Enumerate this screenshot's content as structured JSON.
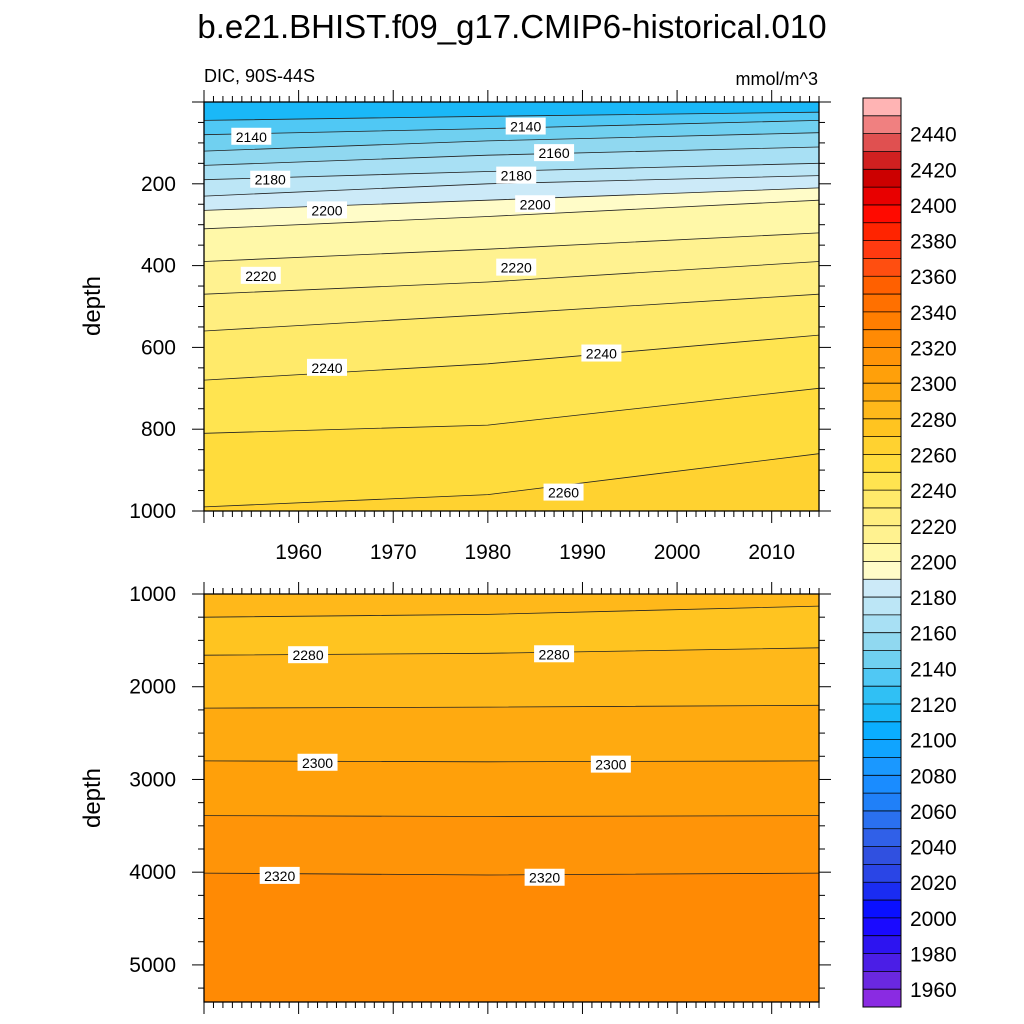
{
  "figure": {
    "title": "b.e21.BHIST.f09_g17.CMIP6-historical.010",
    "subtitle_left": "DIC, 90S-44S",
    "units": "mmol/m^3"
  },
  "colorbar": {
    "levels": [
      1960,
      1970,
      1980,
      1990,
      2000,
      2010,
      2020,
      2030,
      2040,
      2050,
      2060,
      2070,
      2080,
      2090,
      2100,
      2110,
      2120,
      2130,
      2140,
      2150,
      2160,
      2170,
      2180,
      2190,
      2200,
      2210,
      2220,
      2230,
      2240,
      2250,
      2260,
      2270,
      2280,
      2290,
      2300,
      2310,
      2320,
      2330,
      2340,
      2350,
      2360,
      2370,
      2380,
      2390,
      2400,
      2410,
      2420,
      2430,
      2440,
      2450
    ],
    "colors": [
      "#8a2be2",
      "#6a28e0",
      "#4b1ee6",
      "#2d14f0",
      "#1a0aff",
      "#0a10ff",
      "#1a2cf2",
      "#2a45e6",
      "#3050e0",
      "#3060e8",
      "#2a70f0",
      "#2080f8",
      "#1a8cff",
      "#1a98ff",
      "#10a4ff",
      "#0aaeff",
      "#1ab8f8",
      "#30c0f4",
      "#50c8f4",
      "#70d0f0",
      "#90d8f0",
      "#a8e0f4",
      "#bce6f6",
      "#cceaf8",
      "#fffcc8",
      "#fff8a8",
      "#fff290",
      "#ffee80",
      "#ffea6a",
      "#ffe450",
      "#ffdc3c",
      "#ffd230",
      "#ffc420",
      "#ffb81a",
      "#ffaa10",
      "#ffa00a",
      "#ff9408",
      "#ff8a04",
      "#ff7e00",
      "#ff7000",
      "#ff6000",
      "#ff4e10",
      "#ff3a10",
      "#ff2400",
      "#ff0a00",
      "#e80000",
      "#cc0000",
      "#d02020",
      "#e05050",
      "#f08080",
      "#ffb4b4"
    ],
    "tick_labels": [
      "1960",
      "1980",
      "2000",
      "2020",
      "2040",
      "2060",
      "2080",
      "2100",
      "2120",
      "2140",
      "2160",
      "2180",
      "2200",
      "2220",
      "2240",
      "2260",
      "2280",
      "2300",
      "2320",
      "2340",
      "2360",
      "2380",
      "2400",
      "2420",
      "2440"
    ]
  },
  "chart_data": [
    {
      "type": "contour",
      "title": "DIC, 90S-44S",
      "units": "mmol/m^3",
      "xlabel": "",
      "ylabel": "depth",
      "x_range": [
        1950,
        2015
      ],
      "y_range": [
        1000,
        0
      ],
      "x_ticks": [
        1960,
        1970,
        1980,
        1990,
        2000,
        2010
      ],
      "x_tick_labels": [
        "1960",
        "1970",
        "1980",
        "1990",
        "2000",
        "2010"
      ],
      "y_ticks": [
        200,
        400,
        600,
        800,
        1000
      ],
      "y_tick_labels": [
        "200",
        "400",
        "600",
        "800",
        "1000"
      ],
      "top_fill": "#1ab8f8",
      "contours": [
        {
          "level": 2130,
          "x": [
            1950,
            1980,
            2015
          ],
          "depth": [
            45,
            35,
            25
          ]
        },
        {
          "level": 2140,
          "x": [
            1950,
            1980,
            2015
          ],
          "depth": [
            80,
            65,
            45
          ]
        },
        {
          "level": 2150,
          "x": [
            1950,
            1980,
            2015
          ],
          "depth": [
            120,
            95,
            75
          ]
        },
        {
          "level": 2160,
          "x": [
            1950,
            1980,
            2015
          ],
          "depth": [
            155,
            130,
            110
          ]
        },
        {
          "level": 2170,
          "x": [
            1950,
            1980,
            2015
          ],
          "depth": [
            190,
            170,
            150
          ]
        },
        {
          "level": 2180,
          "x": [
            1950,
            1980,
            2015
          ],
          "depth": [
            230,
            200,
            180
          ]
        },
        {
          "level": 2190,
          "x": [
            1950,
            1980,
            2015
          ],
          "depth": [
            265,
            240,
            210
          ]
        },
        {
          "level": 2200,
          "x": [
            1950,
            1980,
            2015
          ],
          "depth": [
            310,
            280,
            240
          ]
        },
        {
          "level": 2210,
          "x": [
            1950,
            1980,
            2015
          ],
          "depth": [
            390,
            360,
            320
          ]
        },
        {
          "level": 2220,
          "x": [
            1950,
            1980,
            2015
          ],
          "depth": [
            470,
            440,
            390
          ]
        },
        {
          "level": 2230,
          "x": [
            1950,
            1980,
            2015
          ],
          "depth": [
            560,
            520,
            470
          ]
        },
        {
          "level": 2240,
          "x": [
            1950,
            1980,
            2015
          ],
          "depth": [
            680,
            640,
            570
          ]
        },
        {
          "level": 2250,
          "x": [
            1950,
            1980,
            2015
          ],
          "depth": [
            810,
            790,
            700
          ]
        },
        {
          "level": 2260,
          "x": [
            1950,
            1980,
            2015
          ],
          "depth": [
            990,
            960,
            860
          ]
        }
      ],
      "labels": [
        {
          "text": "2140",
          "x": 1955,
          "depth": 85
        },
        {
          "text": "2140",
          "x": 1984,
          "depth": 60
        },
        {
          "text": "2160",
          "x": 1987,
          "depth": 125
        },
        {
          "text": "2180",
          "x": 1957,
          "depth": 190
        },
        {
          "text": "2180",
          "x": 1983,
          "depth": 180
        },
        {
          "text": "2200",
          "x": 1963,
          "depth": 265
        },
        {
          "text": "2200",
          "x": 1985,
          "depth": 250
        },
        {
          "text": "2220",
          "x": 1956,
          "depth": 425
        },
        {
          "text": "2220",
          "x": 1983,
          "depth": 405
        },
        {
          "text": "2240",
          "x": 1963,
          "depth": 650
        },
        {
          "text": "2240",
          "x": 1992,
          "depth": 615
        },
        {
          "text": "2260",
          "x": 1988,
          "depth": 955
        }
      ]
    },
    {
      "type": "contour",
      "title": "",
      "units": "mmol/m^3",
      "xlabel": "",
      "ylabel": "depth",
      "x_range": [
        1950,
        2015
      ],
      "y_range": [
        5400,
        1000
      ],
      "x_ticks": [
        1960,
        1970,
        1980,
        1990,
        2000,
        2010
      ],
      "x_tick_labels": [],
      "y_ticks": [
        1000,
        2000,
        3000,
        4000,
        5000
      ],
      "y_tick_labels": [
        "1000",
        "2000",
        "3000",
        "4000",
        "5000"
      ],
      "top_fill": "#ffb81a",
      "contours": [
        {
          "level": 2270,
          "x": [
            1950,
            1980,
            2015
          ],
          "depth": [
            1250,
            1220,
            1130
          ]
        },
        {
          "level": 2280,
          "x": [
            1950,
            1980,
            2015
          ],
          "depth": [
            1660,
            1640,
            1580
          ]
        },
        {
          "level": 2290,
          "x": [
            1950,
            1980,
            2015
          ],
          "depth": [
            2230,
            2220,
            2200
          ]
        },
        {
          "level": 2300,
          "x": [
            1950,
            1980,
            2015
          ],
          "depth": [
            2800,
            2810,
            2800
          ]
        },
        {
          "level": 2310,
          "x": [
            1950,
            1980,
            2015
          ],
          "depth": [
            3390,
            3400,
            3390
          ]
        },
        {
          "level": 2320,
          "x": [
            1950,
            1980,
            2015
          ],
          "depth": [
            4010,
            4030,
            4010
          ]
        }
      ],
      "labels": [
        {
          "text": "2280",
          "x": 1961,
          "depth": 1660
        },
        {
          "text": "2280",
          "x": 1987,
          "depth": 1650
        },
        {
          "text": "2300",
          "x": 1962,
          "depth": 2820
        },
        {
          "text": "2300",
          "x": 1993,
          "depth": 2840
        },
        {
          "text": "2320",
          "x": 1958,
          "depth": 4040
        },
        {
          "text": "2320",
          "x": 1986,
          "depth": 4060
        }
      ]
    }
  ]
}
